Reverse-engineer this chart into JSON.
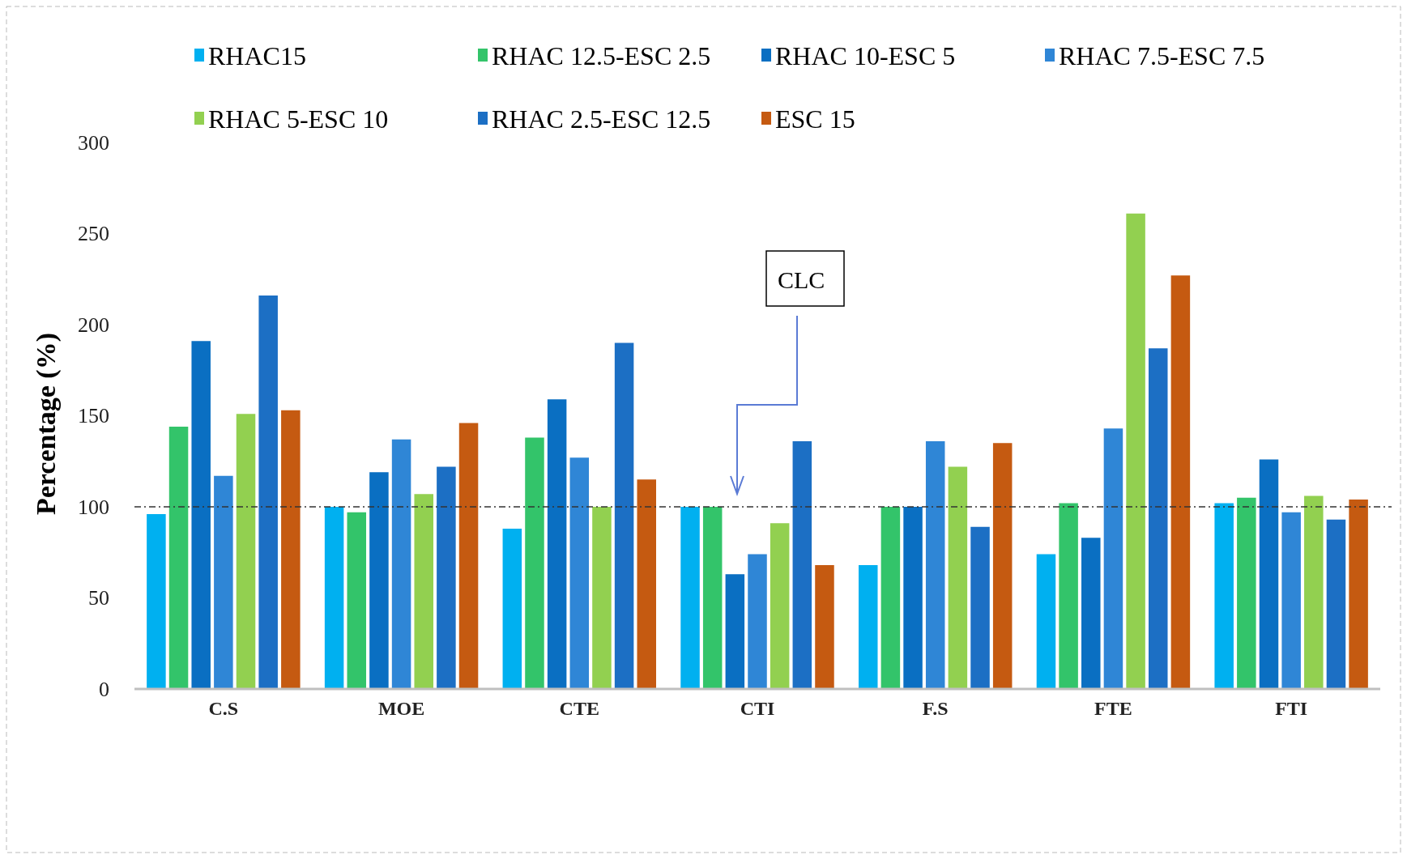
{
  "chart_data": {
    "type": "bar",
    "ylabel": "Percentage (%)",
    "categories": [
      "C.S",
      "MOE",
      "CTE",
      "CTI",
      "F.S",
      "FTE",
      "FTI"
    ],
    "series": [
      {
        "name": "RHAC15",
        "color": "#00b0f0",
        "values": [
          96,
          100,
          88,
          100,
          68,
          74,
          102
        ]
      },
      {
        "name": "RHAC 12.5-ESC 2.5",
        "color": "#33c46a",
        "values": [
          144,
          97,
          138,
          100,
          100,
          102,
          105
        ]
      },
      {
        "name": "RHAC 10-ESC 5",
        "color": "#0a6fc2",
        "values": [
          191,
          119,
          159,
          63,
          100,
          83,
          126
        ]
      },
      {
        "name": "RHAC 7.5-ESC 7.5",
        "color": "#2f86d6",
        "values": [
          117,
          137,
          127,
          74,
          136,
          143,
          97
        ]
      },
      {
        "name": "RHAC 5-ESC 10",
        "color": "#92d050",
        "values": [
          151,
          107,
          100,
          91,
          122,
          261,
          106
        ]
      },
      {
        "name": "RHAC 2.5-ESC 12.5",
        "color": "#1c6fc4",
        "values": [
          216,
          122,
          190,
          136,
          89,
          187,
          93
        ]
      },
      {
        "name": "ESC 15",
        "color": "#c55a11",
        "values": [
          153,
          146,
          115,
          68,
          135,
          227,
          104
        ]
      }
    ],
    "ylim": [
      0,
      300
    ],
    "yticks": [
      0,
      50,
      100,
      150,
      200,
      250,
      300
    ],
    "ref_lines": [
      {
        "axis": "y",
        "value": 100,
        "color": "#333333",
        "line_style": "dashdot"
      }
    ],
    "annotations": [
      "CLC"
    ],
    "legend": "top",
    "grid": false
  }
}
